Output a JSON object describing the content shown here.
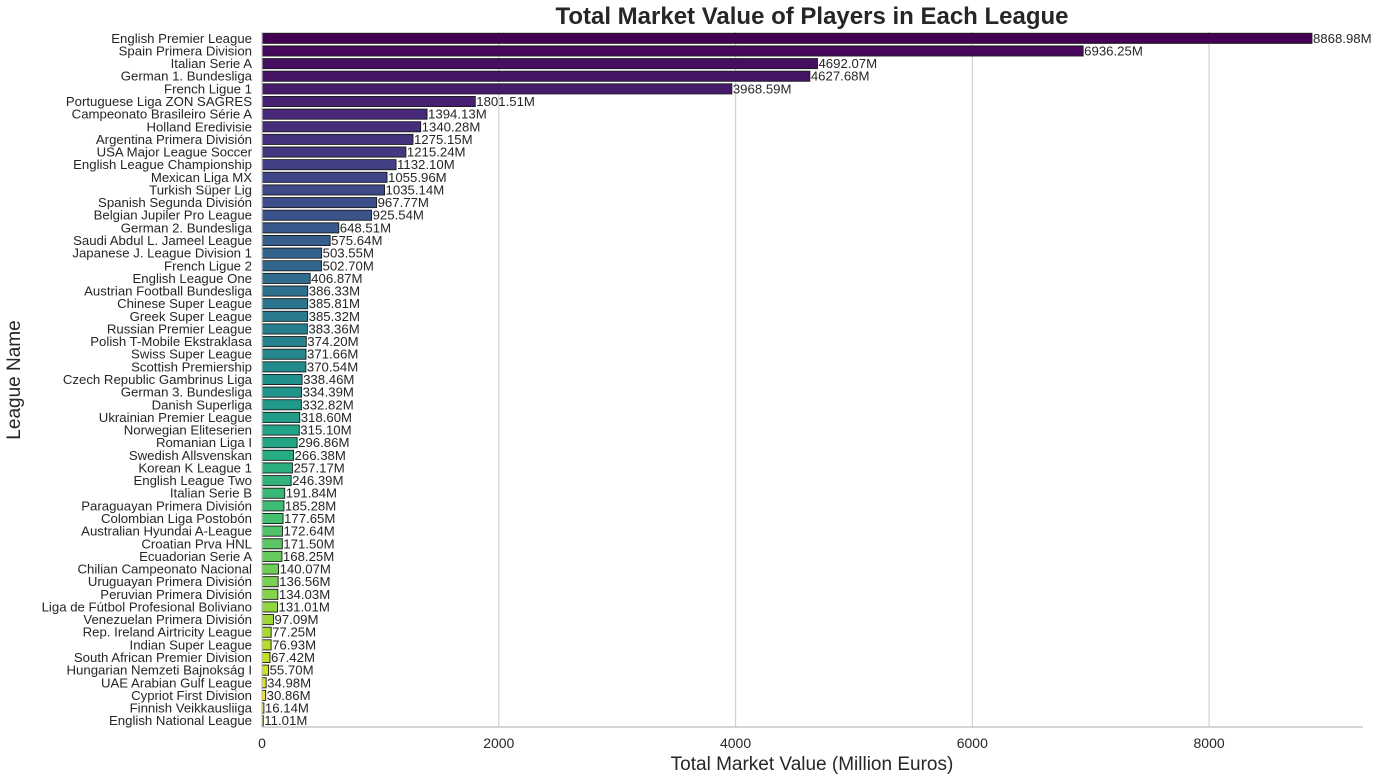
{
  "chart_data": {
    "type": "bar",
    "orientation": "horizontal",
    "title": "Total Market Value of Players in Each League",
    "xlabel": "Total Market Value (Million Euros)",
    "ylabel": "League Name",
    "xlim": [
      0,
      9300
    ],
    "xticks": [
      0,
      2000,
      4000,
      6000,
      8000
    ],
    "grid": "vertical",
    "colormap": "viridis",
    "value_label_suffix": "M",
    "categories": [
      "English Premier League",
      "Spain Primera Division",
      "Italian Serie A",
      "German 1. Bundesliga",
      "French Ligue 1",
      "Portuguese Liga ZON SAGRES",
      "Campeonato Brasileiro Série A",
      "Holland Eredivisie",
      "Argentina Primera División",
      "USA Major League Soccer",
      "English League Championship",
      "Mexican Liga MX",
      "Turkish Süper Lig",
      "Spanish Segunda División",
      "Belgian Jupiler Pro League",
      "German 2. Bundesliga",
      "Saudi Abdul L. Jameel League",
      "Japanese J. League Division 1",
      "French Ligue 2",
      "English League One",
      "Austrian Football Bundesliga",
      "Chinese Super League",
      "Greek Super League",
      "Russian Premier League",
      "Polish T-Mobile Ekstraklasa",
      "Swiss Super League",
      "Scottish Premiership",
      "Czech Republic Gambrinus Liga",
      "German 3. Bundesliga",
      "Danish Superliga",
      "Ukrainian Premier League",
      "Norwegian Eliteserien",
      "Romanian Liga I",
      "Swedish Allsvenskan",
      "Korean K League 1",
      "English League Two",
      "Italian Serie B",
      "Paraguayan Primera División",
      "Colombian Liga Postobón",
      "Australian Hyundai A-League",
      "Croatian Prva HNL",
      "Ecuadorian Serie A",
      "Chilian Campeonato Nacional",
      "Uruguayan Primera División",
      "Peruvian Primera División",
      "Liga de Fútbol Profesional Boliviano",
      "Venezuelan Primera División",
      "Rep. Ireland Airtricity League",
      "Indian Super League",
      "South African Premier Division",
      "Hungarian Nemzeti Bajnokság I",
      "UAE Arabian Gulf League",
      "Cypriot First Division",
      "Finnish Veikkausliiga",
      "English National League"
    ],
    "values": [
      8868.98,
      6936.25,
      4692.07,
      4627.68,
      3968.59,
      1801.51,
      1394.13,
      1340.28,
      1275.15,
      1215.24,
      1132.1,
      1055.96,
      1035.14,
      967.77,
      925.54,
      648.51,
      575.64,
      503.55,
      502.7,
      406.87,
      386.33,
      385.81,
      385.32,
      383.36,
      374.2,
      371.66,
      370.54,
      338.46,
      334.39,
      332.82,
      318.6,
      315.1,
      296.86,
      266.38,
      257.17,
      246.39,
      191.84,
      185.28,
      177.65,
      172.64,
      171.5,
      168.25,
      140.07,
      136.56,
      134.03,
      131.01,
      97.09,
      77.25,
      76.93,
      67.42,
      55.7,
      34.98,
      30.86,
      16.14,
      11.01
    ]
  }
}
